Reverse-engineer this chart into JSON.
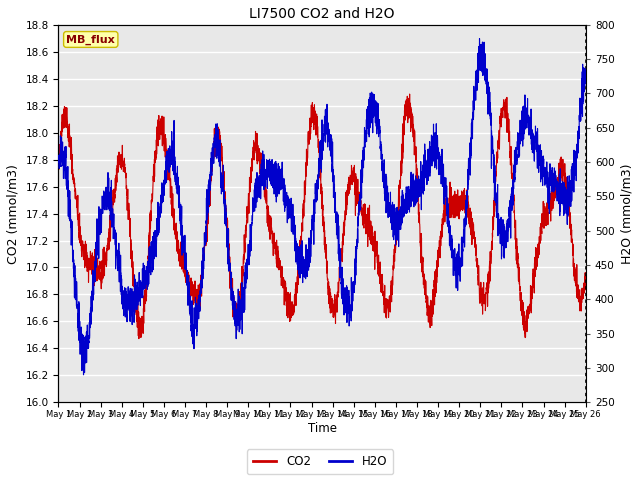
{
  "title": "LI7500 CO2 and H2O",
  "xlabel": "Time",
  "ylabel_left": "CO2 (mmol/m3)",
  "ylabel_right": "H2O (mmol/m3)",
  "co2_ylim": [
    16.0,
    18.8
  ],
  "h2o_ylim": [
    250,
    800
  ],
  "co2_yticks": [
    16.0,
    16.2,
    16.4,
    16.6,
    16.8,
    17.0,
    17.2,
    17.4,
    17.6,
    17.8,
    18.0,
    18.2,
    18.4,
    18.6,
    18.8
  ],
  "h2o_yticks": [
    250,
    300,
    350,
    400,
    450,
    500,
    550,
    600,
    650,
    700,
    750,
    800
  ],
  "co2_color": "#CC0000",
  "h2o_color": "#0000CC",
  "plot_bg_color": "#E8E8E8",
  "annotation_text": "MB_flux",
  "annotation_bg": "#FFFFAA",
  "annotation_border": "#CCBB00",
  "annotation_text_color": "#880000",
  "legend_co2_label": "CO2",
  "legend_h2o_label": "H2O",
  "fig_bg_color": "#FFFFFF",
  "grid_color": "#FFFFFF",
  "n_days": 25
}
